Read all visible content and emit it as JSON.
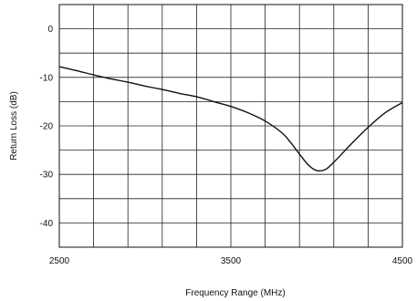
{
  "chart_data": {
    "type": "line",
    "title": "",
    "xlabel": "Frequency Range (MHz)",
    "ylabel": "Return Loss (dB)",
    "xlim": [
      2500,
      4500
    ],
    "ylim": [
      -45,
      5
    ],
    "grid": true,
    "x_ticks": [
      {
        "value": 2500,
        "label": "2500"
      },
      {
        "value": 3500,
        "label": "3500"
      },
      {
        "value": 4500,
        "label": "4500"
      }
    ],
    "y_ticks": [
      {
        "value": 0,
        "label": "0"
      },
      {
        "value": -10,
        "label": "-10"
      },
      {
        "value": -20,
        "label": "-20"
      },
      {
        "value": -30,
        "label": "-30"
      },
      {
        "value": -40,
        "label": "-40"
      }
    ],
    "series": [
      {
        "color": "#111111",
        "x": [
          2500,
          2600,
          2700,
          2800,
          2900,
          3000,
          3100,
          3200,
          3300,
          3400,
          3500,
          3600,
          3700,
          3800,
          3850,
          3900,
          3950,
          4000,
          4050,
          4100,
          4200,
          4300,
          4400,
          4500
        ],
        "y": [
          -7.8,
          -8.6,
          -9.5,
          -10.3,
          -11.0,
          -11.8,
          -12.5,
          -13.3,
          -14.0,
          -15.0,
          -16.0,
          -17.3,
          -19.0,
          -21.5,
          -23.5,
          -25.8,
          -28.0,
          -29.2,
          -29.0,
          -27.5,
          -23.8,
          -20.3,
          -17.3,
          -15.2
        ]
      }
    ]
  }
}
